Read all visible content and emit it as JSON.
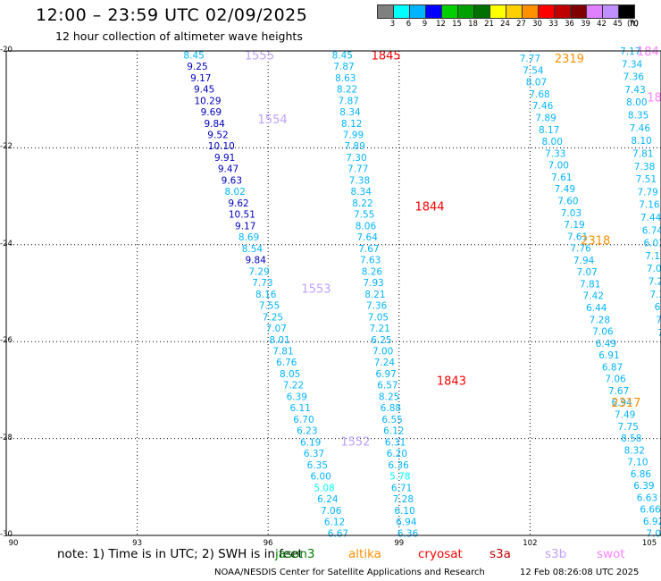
{
  "header": {
    "title": "12:00 – 23:59 UTC 02/09/2025",
    "subtitle": "12 hour collection of altimeter wave heights"
  },
  "colorbar": {
    "labels": [
      "3",
      "6",
      "9",
      "12",
      "15",
      "18",
      "21",
      "24",
      "27",
      "30",
      "33",
      "36",
      "39",
      "42",
      "45",
      "70"
    ],
    "unit": "(ft)",
    "colors": [
      "#808080",
      "#00ffff",
      "#00b4ff",
      "#0000ff",
      "#00d000",
      "#00a000",
      "#007000",
      "#ffff00",
      "#ffd000",
      "#ff9000",
      "#ff0000",
      "#c00000",
      "#800000",
      "#e080ff",
      "#c090ff",
      "#000000"
    ]
  },
  "axes": {
    "y_labels": [
      "-20",
      "-22",
      "-24",
      "-26",
      "-28",
      "-30"
    ],
    "x_labels": [
      "90",
      "93",
      "96",
      "99",
      "102",
      "105"
    ],
    "lat_range": [
      -30,
      -20
    ],
    "lon_range": [
      90,
      105
    ]
  },
  "footer": {
    "note": "note:  1) Time is in UTC; 2) SWH is in feet",
    "satellites": [
      {
        "name": "jason3",
        "color": "#008000"
      },
      {
        "name": "altika",
        "color": "#ff9000"
      },
      {
        "name": "cryosat",
        "color": "#ff0000"
      },
      {
        "name": "s3a",
        "color": "#c00000"
      },
      {
        "name": "s3b",
        "color": "#c0a0ff"
      },
      {
        "name": "swot",
        "color": "#ff80ff"
      }
    ],
    "credit": "NOAA/NESDIS Center for Satellite Applications and Research",
    "timestamp": "12 Feb 08:26:08 UTC 2025"
  },
  "tracks": [
    {
      "satellite": "s3b",
      "time_labels": [
        {
          "text": "1555",
          "lat": -20.08,
          "lon": 95.8
        },
        {
          "text": "1554",
          "lat": -21.4,
          "lon": 96.1
        },
        {
          "text": "1553",
          "lat": -24.9,
          "lon": 97.1
        },
        {
          "text": "1552",
          "lat": -28.05,
          "lon": 98.0
        }
      ],
      "heights": [
        "8.45",
        "9.25",
        "9.17",
        "9.45",
        "10.29",
        "9.69",
        "9.84",
        "9.52",
        "10.10",
        "9.91",
        "9.47",
        "9.63",
        "8.02",
        "9.62",
        "10.51",
        "9.17",
        "8.69",
        "8.54",
        "9.84",
        "7.29",
        "7.73",
        "8.16",
        "7.55",
        "7.25",
        "7.07",
        "8.01",
        "7.81",
        "6.76",
        "8.05",
        "7.22",
        "6.39",
        "6.11",
        "6.70",
        "6.23",
        "6.19",
        "6.37",
        "6.35",
        "6.00",
        "5.08",
        "6.24",
        "7.06",
        "6.12",
        "6.67"
      ],
      "lat_start": -20.08,
      "lat_end": -29.95,
      "lon_start": 94.3,
      "lon_end": 97.6
    },
    {
      "satellite": "cryosat",
      "time_labels": [
        {
          "text": "1845",
          "lat": -20.08,
          "lon": 98.7
        },
        {
          "text": "1844",
          "lat": -23.2,
          "lon": 99.7
        },
        {
          "text": "1843",
          "lat": -26.8,
          "lon": 100.2
        }
      ],
      "heights": [
        "8.45",
        "7.87",
        "8.63",
        "8.22",
        "7.87",
        "8.34",
        "8.12",
        "7.99",
        "7.89",
        "7.30",
        "7.77",
        "7.38",
        "8.34",
        "8.22",
        "7.55",
        "8.06",
        "7.64",
        "7.67",
        "7.63",
        "8.26",
        "7.93",
        "8.21",
        "7.36",
        "7.05",
        "7.21",
        "6.25",
        "7.00",
        "7.24",
        "6.97",
        "6.57",
        "8.25",
        "6.88",
        "6.55",
        "6.12",
        "6.31",
        "6.20",
        "6.36",
        "5.78",
        "6.71",
        "7.28",
        "6.10",
        "6.94",
        "6.36"
      ],
      "lat_start": -20.08,
      "lat_end": -29.95,
      "lon_start": 97.7,
      "lon_end": 99.2
    },
    {
      "satellite": "altika",
      "time_labels": [
        {
          "text": "2319",
          "lat": -20.15,
          "lon": 102.9
        },
        {
          "text": "2318",
          "lat": -23.9,
          "lon": 103.5
        },
        {
          "text": "2317",
          "lat": -27.25,
          "lon": 104.2
        }
      ],
      "heights": [
        "7.77",
        "7.54",
        "8.07",
        "7.68",
        "7.46",
        "7.89",
        "8.17",
        "8.00",
        "7.33",
        "7.00",
        "7.61",
        "7.49",
        "7.60",
        "7.03",
        "7.19",
        "7.61",
        "7.76",
        "7.94",
        "7.07",
        "7.81",
        "7.42",
        "6.44",
        "7.28",
        "7.06",
        "6.49",
        "6.91",
        "6.87",
        "7.06",
        "7.67",
        "6.94",
        "7.49",
        "7.75",
        "8.58",
        "8.32",
        "7.10",
        "6.86",
        "6.39",
        "6.63",
        "6.66",
        "6.92",
        "7.06"
      ],
      "lat_start": -20.15,
      "lat_end": -29.95,
      "lon_start": 102.0,
      "lon_end": 104.9
    },
    {
      "satellite": "altika",
      "time_labels": [],
      "heights": [
        "7.17",
        "7.34",
        "7.36",
        "7.43",
        "8.00",
        "8.35",
        "7.46",
        "8.10",
        "7.81",
        "7.38",
        "7.51",
        "7.79",
        "7.16",
        "7.44",
        "6.74",
        "6.03",
        "7.13",
        "7.04",
        "7.22",
        "7.37",
        "6.5",
        "7.6",
        "7.9",
        "7.",
        "7.",
        "7."
      ],
      "lat_start": -20.0,
      "lat_end": -26.6,
      "lon_start": 104.3,
      "lon_end": 105.2
    },
    {
      "satellite": "swot",
      "time_labels": [
        {
          "text": "184",
          "lat": -20.0,
          "lon": 104.7
        },
        {
          "text": "18",
          "lat": -20.95,
          "lon": 104.85
        }
      ],
      "heights": [],
      "lat_start": -20.0,
      "lat_end": -21.0,
      "lon_start": 104.7,
      "lon_end": 104.9
    }
  ]
}
